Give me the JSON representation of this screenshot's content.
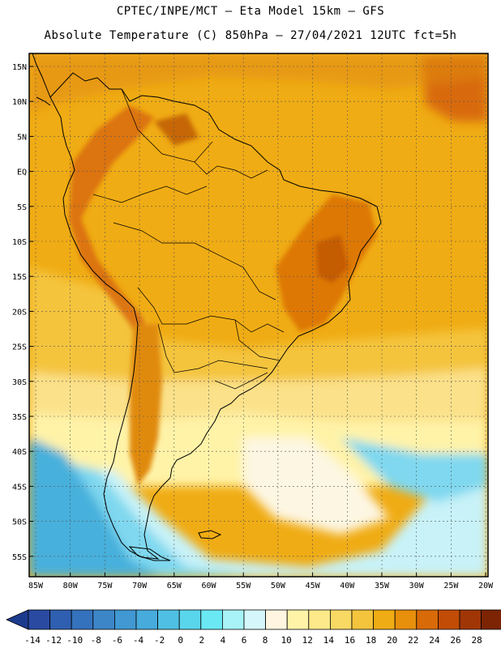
{
  "title_line1": "CPTEC/INPE/MCT –  Eta Model 15km – GFS",
  "title_line2": "Absolute Temperature (C) 850hPa – 27/04/2021 12UTC fct=5h",
  "lat_labels": [
    "15N",
    "10N",
    "5N",
    "EQ",
    "5S",
    "10S",
    "15S",
    "20S",
    "25S",
    "30S",
    "35S",
    "40S",
    "45S",
    "50S",
    "55S"
  ],
  "lon_labels": [
    "85W",
    "80W",
    "75W",
    "70W",
    "65W",
    "60W",
    "55W",
    "50W",
    "45W",
    "40W",
    "35W",
    "30W",
    "25W",
    "20W"
  ],
  "colorbar": {
    "labels": [
      "-14",
      "-12",
      "-10",
      "-8",
      "-6",
      "-4",
      "-2",
      "0",
      "2",
      "4",
      "6",
      "8",
      "10",
      "12",
      "14",
      "16",
      "18",
      "20",
      "22",
      "24",
      "26",
      "28"
    ],
    "colors": [
      "#2a4aa2",
      "#2f5fb0",
      "#3572bd",
      "#3c86c8",
      "#4198d2",
      "#47abdc",
      "#4fc0e3",
      "#5ad6ec",
      "#6ae9f4",
      "#a8f3f7",
      "#d5f7fb",
      "#fff5e0",
      "#fff3a8",
      "#fde98a",
      "#f8d964",
      "#f4c43c",
      "#f0ac14",
      "#e88f0c",
      "#d86a08",
      "#c24c06",
      "#a03606",
      "#7c2404"
    ],
    "low_arrow_color": "#1d3b8e",
    "high_arrow_color": "#5b1004"
  },
  "map_colors": {
    "ocean_south_cold": "#46b0dc",
    "ocean_south_cool": "#7fd8ef",
    "ocean_south_mid": "#c8f2f8",
    "ocean_pale": "#fdf6e2",
    "yellow_light": "#fff3a8",
    "yellow": "#fbe18a",
    "gold": "#f4c43c",
    "orange": "#f0ac14",
    "dark_orange": "#e08a10",
    "hot": "#d86a08",
    "hottest": "#b44a06"
  }
}
